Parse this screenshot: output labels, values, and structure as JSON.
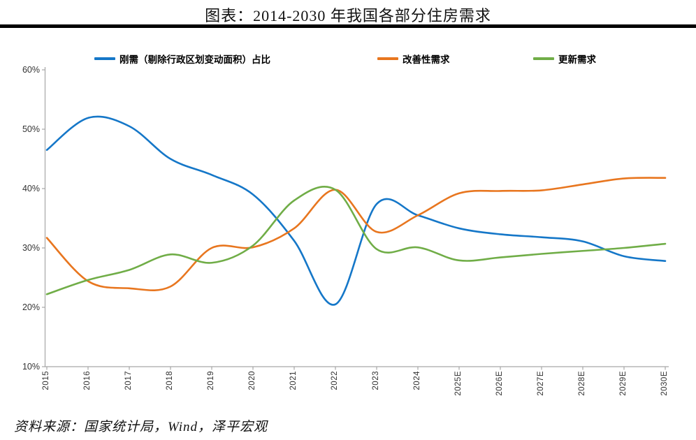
{
  "header": {
    "title": "图表：2014-2030 年我国各部分住房需求"
  },
  "footer": {
    "source": "资料来源：国家统计局，Wind，泽平宏观"
  },
  "colors": {
    "axis": "#A6A6A6",
    "tick_text": "#333333",
    "rule": "#000000"
  },
  "chart_data": {
    "type": "line",
    "title": "图表：2014-2030 年我国各部分住房需求",
    "categories": [
      "2015",
      "2016",
      "2017",
      "2018",
      "2019",
      "2020",
      "2021",
      "2022",
      "2023",
      "2024",
      "2025E",
      "2026E",
      "2027E",
      "2028E",
      "2029E",
      "2030E"
    ],
    "series": [
      {
        "name": "刚需（剔除行政区划变动面积）占比",
        "color": "#1577C8",
        "values": [
          46.5,
          51.9,
          50.5,
          45.0,
          42.3,
          39.0,
          31.2,
          20.5,
          37.4,
          35.5,
          33.3,
          32.3,
          31.8,
          31.1,
          28.6,
          27.8
        ]
      },
      {
        "name": "改善性需求",
        "color": "#E8761F",
        "values": [
          31.7,
          24.4,
          23.2,
          23.5,
          30.0,
          30.1,
          33.3,
          39.8,
          32.7,
          35.5,
          39.2,
          39.6,
          39.7,
          40.7,
          41.7,
          41.8
        ]
      },
      {
        "name": "更新需求",
        "color": "#70AD47",
        "values": [
          22.2,
          24.6,
          26.3,
          28.9,
          27.5,
          30.4,
          38.0,
          39.8,
          29.8,
          30.1,
          27.9,
          28.4,
          29.0,
          29.5,
          30.0,
          30.7
        ]
      }
    ],
    "ylim": [
      10,
      60
    ],
    "yticks": [
      "10%",
      "20%",
      "30%",
      "40%",
      "50%",
      "60%"
    ],
    "grid": false,
    "legend_position": "top",
    "xlabel": "",
    "ylabel": ""
  }
}
